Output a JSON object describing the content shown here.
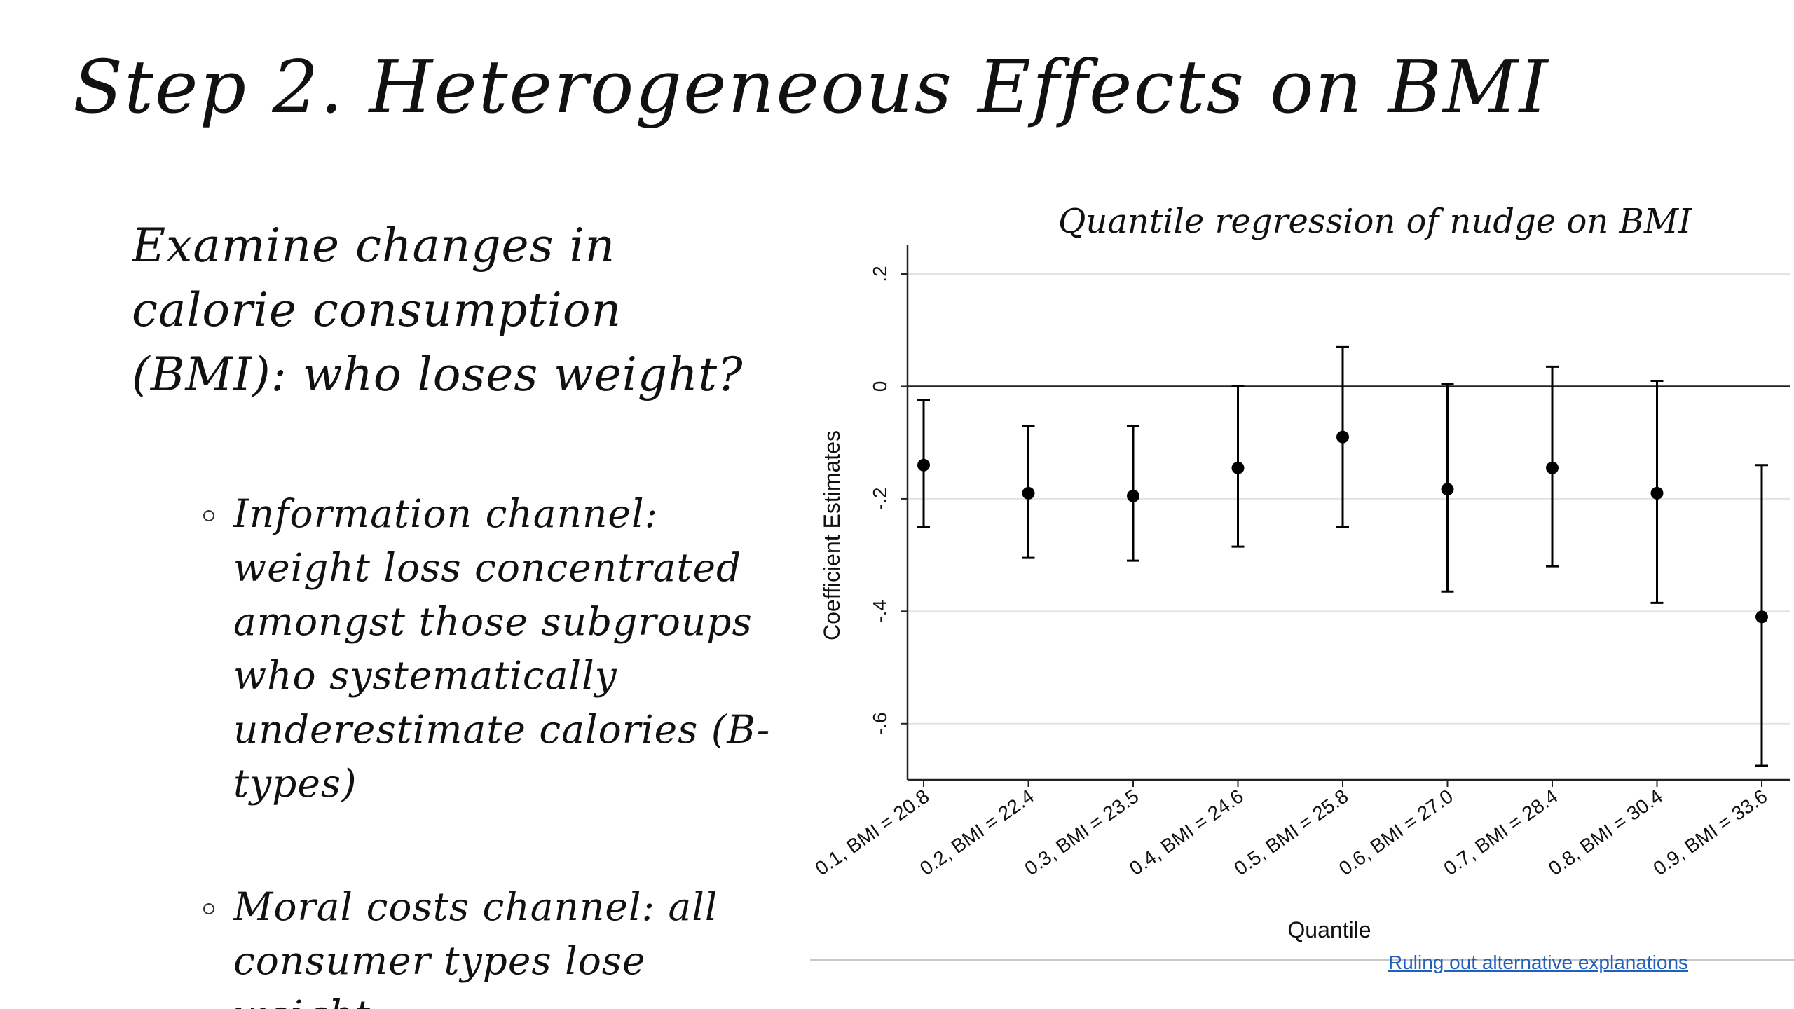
{
  "slide": {
    "title": "Step 2. Heterogeneous Effects on BMI",
    "lead": "Examine changes in calorie consumption (BMI): who loses weight?",
    "bullets": [
      "Information channel: weight loss concentrated amongst those subgroups who systematically underestimate calories (B-types)",
      "Moral costs channel: all consumer types lose weight"
    ],
    "footer_link": "Ruling out alternative explanations"
  },
  "chart_data": {
    "type": "scatter",
    "title": "Quantile regression of nudge on BMI",
    "xlabel": "Quantile",
    "ylabel": "Coefficient Estimates",
    "categories": [
      "0.1, BMI = 20.8",
      "0.2, BMI = 22.4",
      "0.3, BMI = 23.5",
      "0.4, BMI = 24.6",
      "0.5, BMI = 25.8",
      "0.6, BMI = 27.0",
      "0.7, BMI = 28.4",
      "0.8, BMI = 30.4",
      "0.9, BMI = 33.6"
    ],
    "values": [
      -0.14,
      -0.19,
      -0.195,
      -0.145,
      -0.09,
      -0.183,
      -0.145,
      -0.19,
      -0.41
    ],
    "ci_lower": [
      -0.25,
      -0.305,
      -0.31,
      -0.285,
      -0.25,
      -0.365,
      -0.32,
      -0.385,
      -0.675
    ],
    "ci_upper": [
      -0.025,
      -0.07,
      -0.07,
      0.0,
      0.07,
      0.005,
      0.035,
      0.01,
      -0.14
    ],
    "ylim": [
      -0.7,
      0.22
    ],
    "yticks": [
      0.2,
      0,
      -0.2,
      -0.4,
      -0.6
    ],
    "ytick_labels": [
      ".2",
      "0",
      "-.2",
      "-.4",
      "-.6"
    ],
    "reference_line": 0,
    "grid": true,
    "legend": "none",
    "colors": {
      "marker": "#000000",
      "grid": "#e2e2e2",
      "axis": "#222222"
    }
  }
}
